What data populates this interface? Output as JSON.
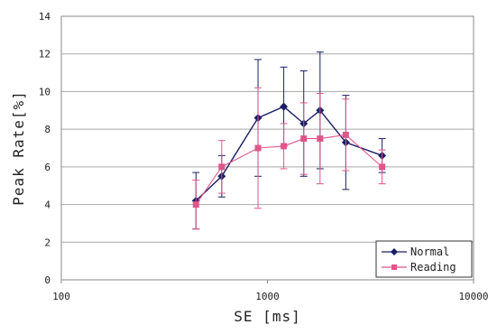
{
  "chart_data": {
    "type": "line",
    "title": "",
    "xlabel": "SE [ms]",
    "ylabel": "Peak Rate[%]",
    "xscale": "log",
    "xlim": [
      100,
      10000
    ],
    "ylim": [
      0,
      14
    ],
    "x_ticks": [
      100,
      1000,
      10000
    ],
    "x_tick_labels": [
      "100",
      "1000",
      "10000"
    ],
    "y_ticks": [
      0,
      2,
      4,
      6,
      8,
      10,
      12,
      14
    ],
    "grid": "horizontal",
    "legend_position": "bottom-right",
    "series": [
      {
        "name": "Normal",
        "color": "#1a1f66",
        "marker": "diamond",
        "x": [
          450,
          600,
          900,
          1200,
          1500,
          1800,
          2400,
          3600
        ],
        "y": [
          4.2,
          5.5,
          8.6,
          9.2,
          8.3,
          9.0,
          7.3,
          6.6
        ],
        "err": [
          1.5,
          1.1,
          3.1,
          2.1,
          2.8,
          3.1,
          2.5,
          0.9
        ]
      },
      {
        "name": "Reading",
        "color": "#e0558a",
        "marker": "square",
        "x": [
          450,
          600,
          900,
          1200,
          1500,
          1800,
          2400,
          3600
        ],
        "y": [
          4.0,
          6.0,
          7.0,
          7.1,
          7.5,
          7.5,
          7.7,
          6.0
        ],
        "err": [
          1.3,
          1.4,
          3.2,
          1.2,
          1.9,
          2.4,
          1.9,
          0.9
        ]
      }
    ]
  }
}
